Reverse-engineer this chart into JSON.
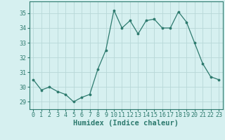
{
  "x": [
    0,
    1,
    2,
    3,
    4,
    5,
    6,
    7,
    8,
    9,
    10,
    11,
    12,
    13,
    14,
    15,
    16,
    17,
    18,
    19,
    20,
    21,
    22,
    23
  ],
  "y": [
    30.5,
    29.8,
    30.0,
    29.7,
    29.5,
    29.0,
    29.3,
    29.5,
    31.2,
    32.5,
    35.2,
    34.0,
    34.5,
    33.6,
    34.5,
    34.6,
    34.0,
    34.0,
    35.1,
    34.4,
    33.0,
    31.6,
    30.7,
    30.5
  ],
  "line_color": "#2d7a6e",
  "marker": ".",
  "marker_size": 3.5,
  "bg_color": "#d6f0f0",
  "grid_color": "#b8d8d8",
  "xlabel": "Humidex (Indice chaleur)",
  "xlim": [
    -0.5,
    23.5
  ],
  "ylim": [
    28.5,
    35.8
  ],
  "yticks": [
    29,
    30,
    31,
    32,
    33,
    34,
    35
  ],
  "xticks": [
    0,
    1,
    2,
    3,
    4,
    5,
    6,
    7,
    8,
    9,
    10,
    11,
    12,
    13,
    14,
    15,
    16,
    17,
    18,
    19,
    20,
    21,
    22,
    23
  ],
  "xtick_labels": [
    "0",
    "1",
    "2",
    "3",
    "4",
    "5",
    "6",
    "7",
    "8",
    "9",
    "10",
    "11",
    "12",
    "13",
    "14",
    "15",
    "16",
    "17",
    "18",
    "19",
    "20",
    "21",
    "22",
    "23"
  ],
  "xlabel_fontsize": 7.5,
  "tick_fontsize": 6.0
}
